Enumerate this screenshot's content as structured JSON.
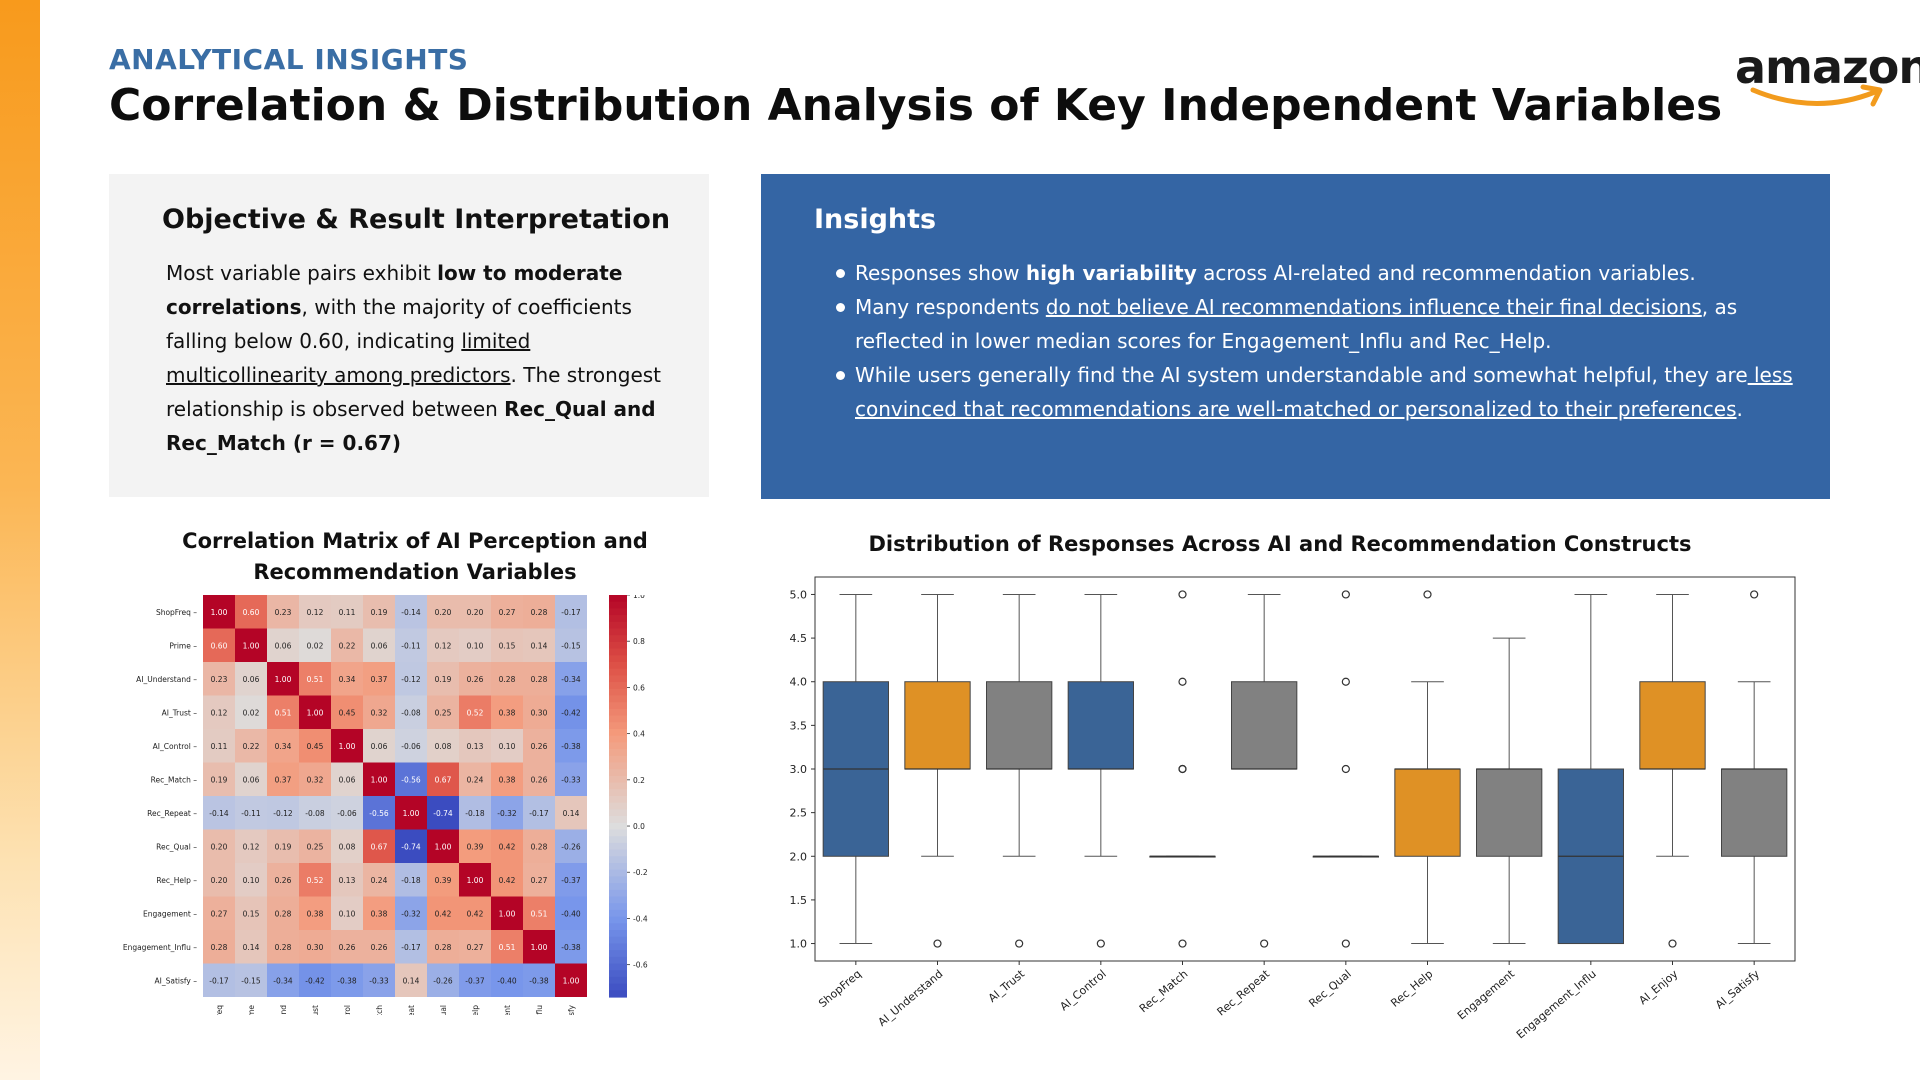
{
  "header": {
    "eyebrow": "ANALYTICAL INSIGHTS",
    "title": "Correlation & Distribution Analysis of Key Independent Variables",
    "logo_text": "amazon"
  },
  "objective": {
    "title": "Objective & Result Interpretation",
    "t1": "Most variable pairs exhibit ",
    "t2": "low to moderate correlations",
    "t3": ", with the majority of coefficients falling below 0.60, indicating ",
    "t4": "limited multicollinearity among predictors",
    "t5": ". The strongest relationship is observed between ",
    "t6": "Rec_Qual and Rec_Match (r = 0.67)"
  },
  "insights": {
    "title": "Insights",
    "b1_pre": "Responses show ",
    "b1_bold": "high variability",
    "b1_post": " across AI-related and recommendation variables.",
    "b2_pre": "Many respondents ",
    "b2_u": "do not believe AI recommendations influence their final decisions",
    "b2_post": ", as reflected in lower median scores for Engagement_Influ and Rec_Help.",
    "b3_pre": "While users generally find the AI system understandable and somewhat helpful, they are",
    "b3_u": " less convinced that recommendations are well-matched or personalized to their preferences",
    "b3_post": "."
  },
  "chart_data": [
    {
      "type": "heatmap",
      "title": "Correlation Matrix of AI Perception and Recommendation Variables",
      "labels": [
        "ShopFreq",
        "Prime",
        "AI_Understand",
        "AI_Trust",
        "AI_Control",
        "Rec_Match",
        "Rec_Repeat",
        "Rec_Qual",
        "Rec_Help",
        "Engagement",
        "Engagement_Influ",
        "AI_Satisfy"
      ],
      "matrix": [
        [
          1.0,
          0.6,
          0.23,
          0.12,
          0.11,
          0.19,
          -0.14,
          0.2,
          0.2,
          0.27,
          0.28,
          -0.17
        ],
        [
          0.6,
          1.0,
          0.06,
          0.02,
          0.22,
          0.06,
          -0.11,
          0.12,
          0.1,
          0.15,
          0.14,
          -0.15
        ],
        [
          0.23,
          0.06,
          1.0,
          0.51,
          0.34,
          0.37,
          -0.12,
          0.19,
          0.26,
          0.28,
          0.28,
          -0.34
        ],
        [
          0.12,
          0.02,
          0.51,
          1.0,
          0.45,
          0.32,
          -0.08,
          0.25,
          0.52,
          0.38,
          0.3,
          -0.42
        ],
        [
          0.11,
          0.22,
          0.34,
          0.45,
          1.0,
          0.06,
          -0.06,
          0.08,
          0.13,
          0.1,
          0.26,
          -0.38
        ],
        [
          0.19,
          0.06,
          0.37,
          0.32,
          0.06,
          1.0,
          -0.56,
          0.67,
          0.24,
          0.38,
          0.26,
          -0.33
        ],
        [
          -0.14,
          -0.11,
          -0.12,
          -0.08,
          -0.06,
          -0.56,
          1.0,
          -0.74,
          -0.18,
          -0.32,
          -0.17,
          0.14
        ],
        [
          0.2,
          0.12,
          0.19,
          0.25,
          0.08,
          0.67,
          -0.74,
          1.0,
          0.39,
          0.42,
          0.28,
          -0.26
        ],
        [
          0.2,
          0.1,
          0.26,
          0.52,
          0.13,
          0.24,
          -0.18,
          0.39,
          1.0,
          0.42,
          0.27,
          -0.37
        ],
        [
          0.27,
          0.15,
          0.28,
          0.38,
          0.1,
          0.38,
          -0.32,
          0.42,
          0.42,
          1.0,
          0.51,
          -0.4
        ],
        [
          0.28,
          0.14,
          0.28,
          0.3,
          0.26,
          0.26,
          -0.17,
          0.28,
          0.27,
          0.51,
          1.0,
          -0.38
        ],
        [
          -0.17,
          -0.15,
          -0.34,
          -0.42,
          -0.38,
          -0.33,
          0.14,
          -0.26,
          -0.37,
          -0.4,
          -0.38,
          1.0
        ]
      ],
      "colorbar_ticks": [
        "1.0",
        "0.8",
        "0.6",
        "0.4",
        "0.2",
        "0.0",
        "-0.2",
        "-0.4",
        "-0.6"
      ],
      "range": [
        -0.74,
        1.0
      ]
    },
    {
      "type": "boxplot",
      "title": "Distribution of Responses Across AI and Recommendation Constructs",
      "ylim": [
        0.8,
        5.2
      ],
      "yticks": [
        "1.0",
        "1.5",
        "2.0",
        "2.5",
        "3.0",
        "3.5",
        "4.0",
        "4.5",
        "5.0"
      ],
      "colors": {
        "blue": "#3a6496",
        "orange": "#df9125",
        "gray": "#818181"
      },
      "boxes": [
        {
          "label": "ShopFreq",
          "min": 1,
          "q1": 2,
          "median": 3,
          "q3": 4,
          "max": 5,
          "color": "blue",
          "outliers": []
        },
        {
          "label": "AI_Understand",
          "min": 2,
          "q1": 3,
          "median": 3,
          "q3": 4,
          "max": 5,
          "color": "orange",
          "outliers": [
            1
          ]
        },
        {
          "label": "AI_Trust",
          "min": 2,
          "q1": 3,
          "median": 3,
          "q3": 4,
          "max": 5,
          "color": "gray",
          "outliers": [
            1
          ]
        },
        {
          "label": "AI_Control",
          "min": 2,
          "q1": 3,
          "median": 3,
          "q3": 4,
          "max": 5,
          "color": "blue",
          "outliers": [
            1
          ]
        },
        {
          "label": "Rec_Match",
          "min": 2,
          "q1": 2,
          "median": 2,
          "q3": 2,
          "max": 2,
          "color": "blue",
          "outliers": [
            1,
            3,
            3,
            4,
            5
          ]
        },
        {
          "label": "Rec_Repeat",
          "min": 3,
          "q1": 3,
          "median": 3,
          "q3": 4,
          "max": 5,
          "color": "gray",
          "outliers": [
            1
          ]
        },
        {
          "label": "Rec_Qual",
          "min": 2,
          "q1": 2,
          "median": 2,
          "q3": 2,
          "max": 2,
          "color": "gray",
          "outliers": [
            1,
            3,
            4,
            5
          ]
        },
        {
          "label": "Rec_Help",
          "min": 1,
          "q1": 2,
          "median": 3,
          "q3": 3,
          "max": 4,
          "color": "orange",
          "outliers": [
            5
          ]
        },
        {
          "label": "Engagement",
          "min": 1,
          "q1": 2,
          "median": 3,
          "q3": 3,
          "max": 4.5,
          "color": "gray",
          "outliers": []
        },
        {
          "label": "Engagement_Influ",
          "min": 1,
          "q1": 1,
          "median": 2,
          "q3": 3,
          "max": 5,
          "color": "blue",
          "outliers": []
        },
        {
          "label": "AI_Enjoy",
          "min": 2,
          "q1": 3,
          "median": 3,
          "q3": 4,
          "max": 5,
          "color": "orange",
          "outliers": [
            1
          ]
        },
        {
          "label": "AI_Satisfy",
          "min": 1,
          "q1": 2,
          "median": 3,
          "q3": 3,
          "max": 4,
          "color": "gray",
          "outliers": [
            5
          ]
        }
      ]
    }
  ]
}
